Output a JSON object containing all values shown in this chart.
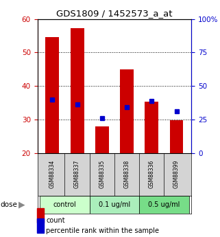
{
  "title": "GDS1809 / 1452573_a_at",
  "samples": [
    "GSM88334",
    "GSM88337",
    "GSM88335",
    "GSM88338",
    "GSM88336",
    "GSM88399"
  ],
  "bar_values": [
    54.5,
    57.3,
    28.0,
    45.0,
    35.2,
    29.7
  ],
  "percentile_values": [
    40,
    36,
    26,
    34,
    39,
    31
  ],
  "bar_bottom": 20,
  "ylim_left": [
    20,
    60
  ],
  "ylim_right": [
    0,
    100
  ],
  "yticks_left": [
    20,
    30,
    40,
    50,
    60
  ],
  "yticks_right": [
    0,
    25,
    50,
    75,
    100
  ],
  "ytick_labels_right": [
    "0",
    "25",
    "50",
    "75",
    "100%"
  ],
  "bar_color": "#cc0000",
  "dot_color": "#0000cc",
  "groups": [
    {
      "label": "control",
      "indices": [
        0,
        1
      ],
      "color": "#ccffcc"
    },
    {
      "label": "0.1 ug/ml",
      "indices": [
        2,
        3
      ],
      "color": "#aaeebb"
    },
    {
      "label": "0.5 ug/ml",
      "indices": [
        4,
        5
      ],
      "color": "#77dd88"
    }
  ],
  "dose_label": "dose",
  "legend_count_label": "count",
  "legend_pct_label": "percentile rank within the sample",
  "bar_width": 0.55,
  "bg_color": "#ffffff",
  "left_tick_color": "#cc0000",
  "right_tick_color": "#0000cc",
  "sample_bg_color": "#d4d4d4",
  "fig_width": 3.21,
  "fig_height": 3.45,
  "dpi": 100
}
